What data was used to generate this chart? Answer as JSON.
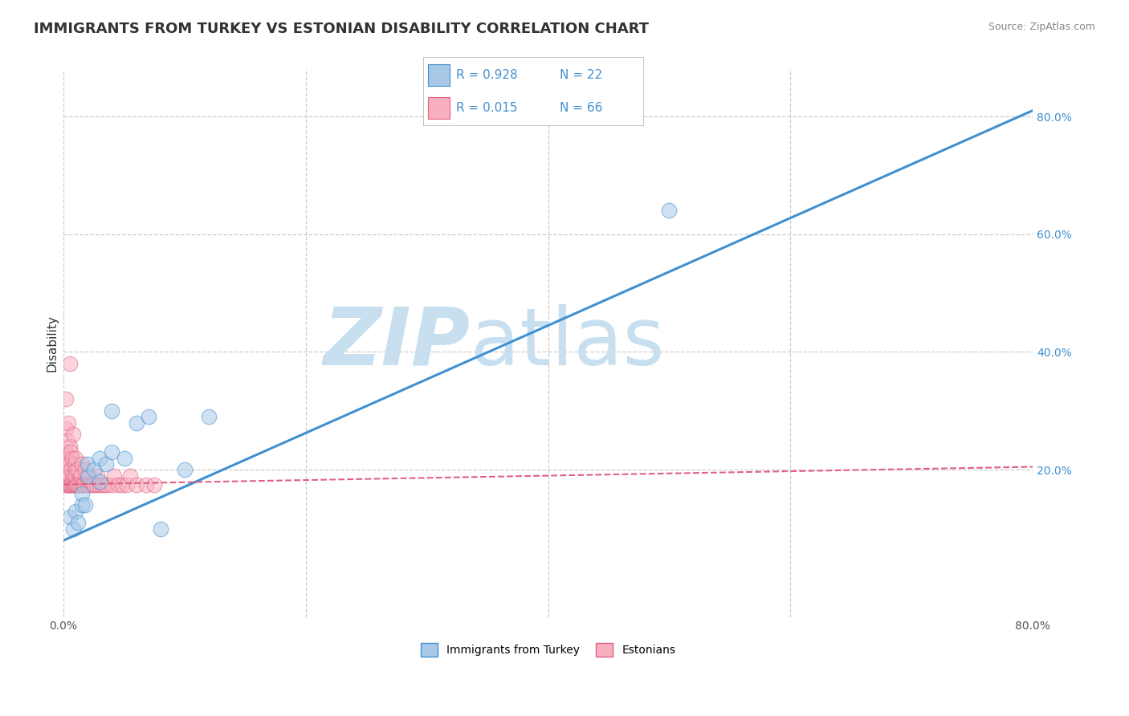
{
  "title": "IMMIGRANTS FROM TURKEY VS ESTONIAN DISABILITY CORRELATION CHART",
  "source": "Source: ZipAtlas.com",
  "ylabel": "Disability",
  "xlabel": "",
  "xlim": [
    0.0,
    0.8
  ],
  "ylim": [
    -0.05,
    0.88
  ],
  "xticks": [
    0.0,
    0.2,
    0.4,
    0.6,
    0.8
  ],
  "xtick_labels": [
    "0.0%",
    "",
    "",
    "",
    "80.0%"
  ],
  "ytick_labels_right": [
    "20.0%",
    "40.0%",
    "60.0%",
    "80.0%"
  ],
  "ytick_positions_right": [
    0.2,
    0.4,
    0.6,
    0.8
  ],
  "legend_r1": "R = 0.928",
  "legend_n1": "N = 22",
  "legend_r2": "R = 0.015",
  "legend_n2": "N = 66",
  "blue_color": "#a8c8e8",
  "blue_color_dark": "#4090d0",
  "pink_color": "#f8b0c0",
  "pink_color_dark": "#e06080",
  "blue_line_x0": 0.0,
  "blue_line_y0": 0.08,
  "blue_line_x1": 0.8,
  "blue_line_y1": 0.81,
  "pink_line_x0": 0.0,
  "pink_line_y0": 0.175,
  "pink_line_x1": 0.8,
  "pink_line_y1": 0.205,
  "blue_scatter_x": [
    0.005,
    0.008,
    0.01,
    0.012,
    0.015,
    0.015,
    0.018,
    0.02,
    0.02,
    0.025,
    0.03,
    0.03,
    0.035,
    0.04,
    0.04,
    0.05,
    0.06,
    0.07,
    0.08,
    0.1,
    0.12,
    0.5
  ],
  "blue_scatter_y": [
    0.12,
    0.1,
    0.13,
    0.11,
    0.14,
    0.16,
    0.14,
    0.19,
    0.21,
    0.2,
    0.18,
    0.22,
    0.21,
    0.23,
    0.3,
    0.22,
    0.28,
    0.29,
    0.1,
    0.2,
    0.29,
    0.64
  ],
  "pink_scatter_x": [
    0.002,
    0.002,
    0.002,
    0.002,
    0.002,
    0.002,
    0.003,
    0.003,
    0.003,
    0.004,
    0.004,
    0.004,
    0.004,
    0.005,
    0.005,
    0.005,
    0.005,
    0.005,
    0.005,
    0.005,
    0.006,
    0.006,
    0.006,
    0.007,
    0.007,
    0.008,
    0.008,
    0.008,
    0.009,
    0.009,
    0.01,
    0.01,
    0.01,
    0.01,
    0.01,
    0.011,
    0.012,
    0.012,
    0.013,
    0.014,
    0.015,
    0.015,
    0.016,
    0.017,
    0.018,
    0.019,
    0.02,
    0.021,
    0.022,
    0.024,
    0.025,
    0.027,
    0.028,
    0.03,
    0.032,
    0.034,
    0.036,
    0.04,
    0.042,
    0.045,
    0.048,
    0.052,
    0.055,
    0.06,
    0.068,
    0.075
  ],
  "pink_scatter_y": [
    0.175,
    0.19,
    0.21,
    0.23,
    0.27,
    0.32,
    0.175,
    0.2,
    0.25,
    0.175,
    0.19,
    0.22,
    0.28,
    0.175,
    0.175,
    0.175,
    0.19,
    0.21,
    0.24,
    0.38,
    0.175,
    0.2,
    0.23,
    0.175,
    0.22,
    0.175,
    0.19,
    0.26,
    0.175,
    0.21,
    0.175,
    0.175,
    0.19,
    0.2,
    0.22,
    0.175,
    0.175,
    0.2,
    0.175,
    0.19,
    0.175,
    0.21,
    0.175,
    0.175,
    0.2,
    0.175,
    0.175,
    0.19,
    0.175,
    0.175,
    0.175,
    0.175,
    0.19,
    0.175,
    0.175,
    0.175,
    0.175,
    0.175,
    0.19,
    0.175,
    0.175,
    0.175,
    0.19,
    0.175,
    0.175,
    0.175
  ],
  "watermark_zip": "ZIP",
  "watermark_atlas": "atlas",
  "watermark_color": "#c8dff0",
  "grid_color": "#cccccc",
  "background_color": "#ffffff",
  "title_fontsize": 13,
  "axis_label_fontsize": 11,
  "tick_fontsize": 10,
  "legend_fontsize": 12
}
